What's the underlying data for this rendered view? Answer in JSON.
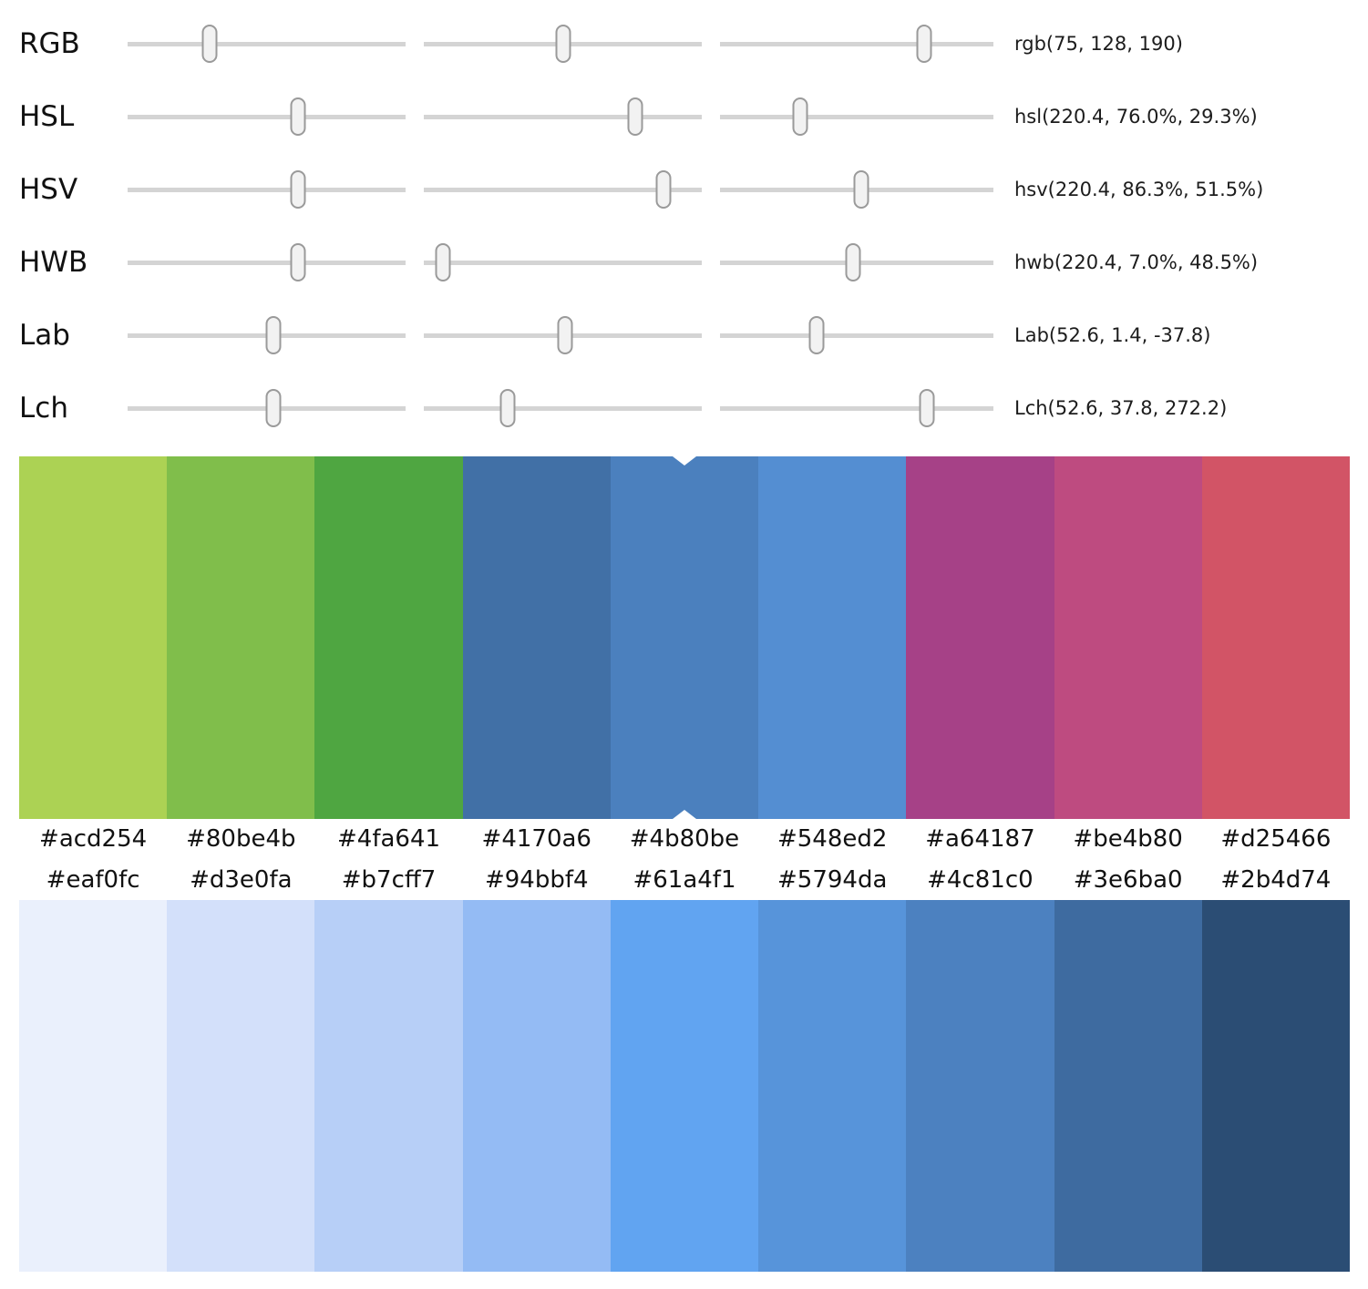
{
  "marker_color": "#ffffff",
  "sliders": {
    "track_color": "#d4d4d4",
    "thumb_fill": "#f2f2f2",
    "thumb_border": "#9a9a9a",
    "rows": [
      {
        "label": "RGB",
        "value": "rgb(75, 128, 190)",
        "positions": [
          29.4,
          50.2,
          74.5
        ]
      },
      {
        "label": "HSL",
        "value": "hsl(220.4, 76.0%, 29.3%)",
        "positions": [
          61.2,
          76.0,
          29.3
        ]
      },
      {
        "label": "HSV",
        "value": "hsv(220.4, 86.3%, 51.5%)",
        "positions": [
          61.2,
          86.3,
          51.5
        ]
      },
      {
        "label": "HWB",
        "value": "hwb(220.4, 7.0%, 48.5%)",
        "positions": [
          61.2,
          7.0,
          48.5
        ]
      },
      {
        "label": "Lab",
        "value": "Lab(52.6, 1.4, -37.8)",
        "positions": [
          52.6,
          50.7,
          35.4
        ]
      },
      {
        "label": "Lch",
        "value": "Lch(52.6, 37.8, 272.2)",
        "positions": [
          52.6,
          30.2,
          75.6
        ]
      }
    ]
  },
  "harmony_palette": {
    "selected_index": 4,
    "swatches": [
      "#acd254",
      "#80be4b",
      "#4fa641",
      "#4170a6",
      "#4b80be",
      "#548ed2",
      "#a64187",
      "#be4b80",
      "#d25466"
    ]
  },
  "lightness_palette": {
    "swatches": [
      "#eaf0fc",
      "#d3e0fa",
      "#b7cff7",
      "#94bbf4",
      "#61a4f1",
      "#5794da",
      "#4c81c0",
      "#3e6ba0",
      "#2b4d74"
    ]
  }
}
